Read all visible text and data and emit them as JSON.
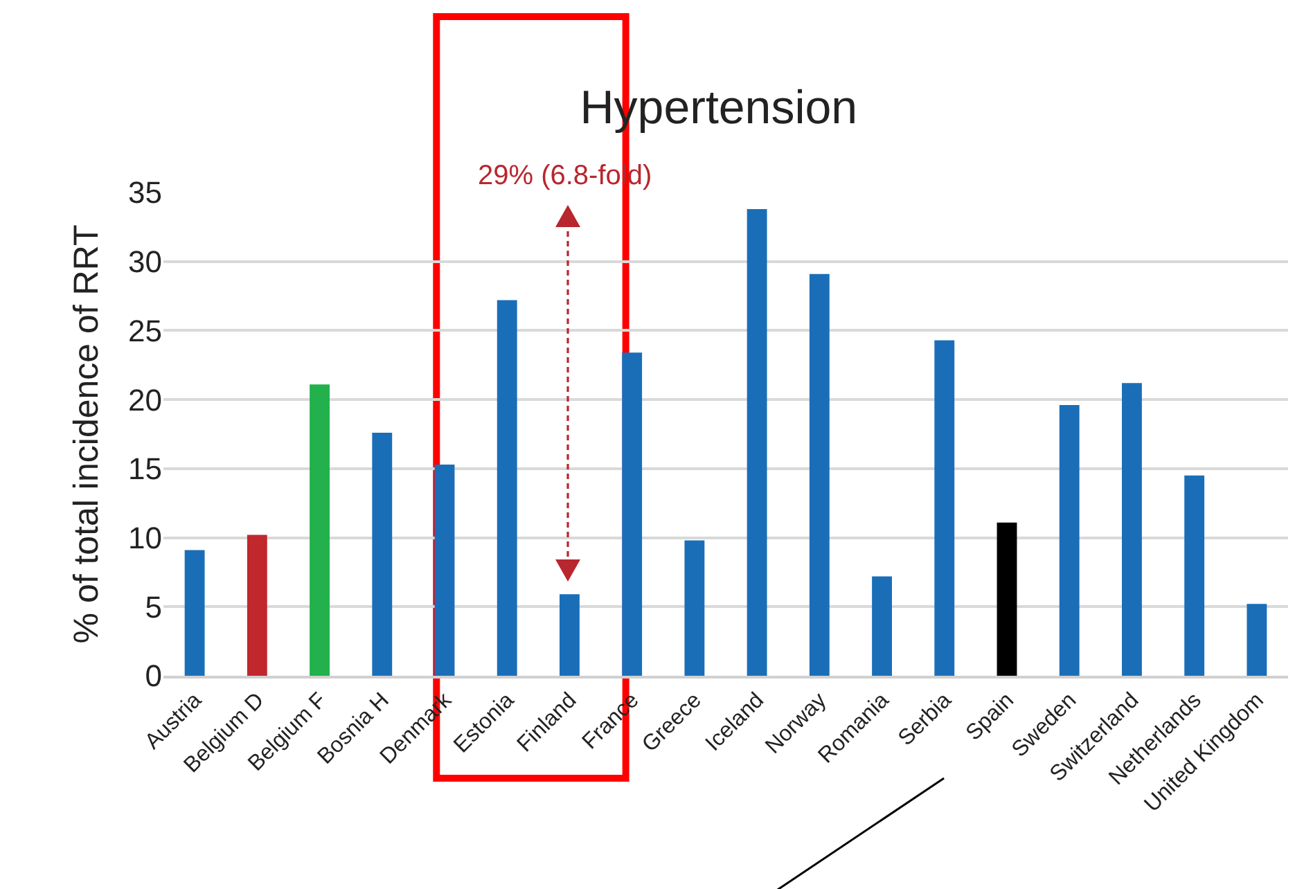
{
  "chart_data": {
    "type": "bar",
    "title": "Hypertension",
    "ylabel": "% of total incidence of RRT",
    "categories": [
      "Austria",
      "Belgium D",
      "Belgium F",
      "Bosnia H",
      "Denmark",
      "Estonia",
      "Finland",
      "France",
      "Greece",
      "Iceland",
      "Norway",
      "Romania",
      "Serbia",
      "Spain",
      "Sweden",
      "Switzerland",
      "Netherlands",
      "United Kingdom"
    ],
    "values": [
      9.1,
      10.2,
      21.1,
      17.6,
      15.3,
      27.2,
      5.9,
      23.4,
      9.8,
      33.8,
      29.1,
      7.2,
      24.3,
      11.1,
      19.6,
      21.2,
      14.5,
      5.2
    ],
    "colors": [
      "#1a6eb8",
      "#c0282d",
      "#22b14c",
      "#1a6eb8",
      "#1a6eb8",
      "#1a6eb8",
      "#1a6eb8",
      "#1a6eb8",
      "#1a6eb8",
      "#1a6eb8",
      "#1a6eb8",
      "#1a6eb8",
      "#1a6eb8",
      "#000000",
      "#1a6eb8",
      "#1a6eb8",
      "#1a6eb8",
      "#1a6eb8"
    ],
    "ylim": [
      0,
      35
    ],
    "yticks": [
      0,
      5,
      10,
      15,
      20,
      25,
      30,
      35
    ],
    "grid": "y",
    "legend": false,
    "annotations": [
      "29% (6.8-fold)"
    ]
  }
}
